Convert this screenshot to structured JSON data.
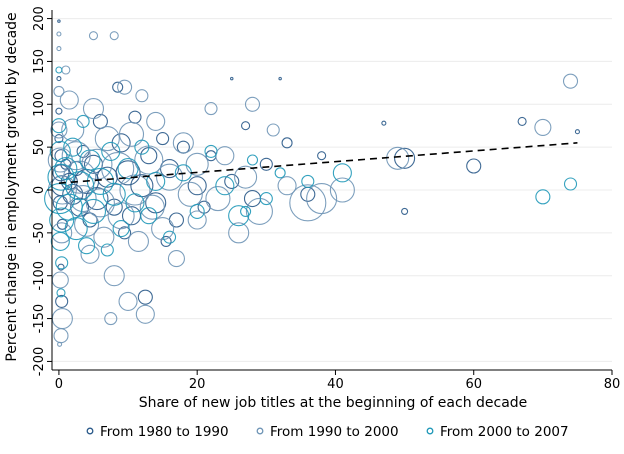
{
  "chart_data": {
    "type": "scatter",
    "title": "",
    "xlabel": "Share of new job titles at the beginning of each decade",
    "ylabel": "Percent change in employment growth by decade",
    "xlim": [
      -1,
      80
    ],
    "ylim": [
      -210,
      210
    ],
    "xticks": [
      0,
      20,
      40,
      60,
      80
    ],
    "yticks": [
      -200,
      -150,
      -100,
      -50,
      0,
      50,
      100,
      150,
      200
    ],
    "grid": true,
    "legend_position": "bottom",
    "colors": {
      "1980s": "#2a5a8a",
      "1990s": "#6f95b6",
      "2000s": "#1f98b8",
      "fit_line": "#000000"
    },
    "series": [
      {
        "name": "From 1980 to 1990",
        "points": [
          [
            0,
            197,
            1
          ],
          [
            0,
            130,
            2
          ],
          [
            0,
            92,
            3
          ],
          [
            0,
            60,
            4
          ],
          [
            0.3,
            40,
            6
          ],
          [
            0.3,
            20,
            8
          ],
          [
            0.4,
            5,
            10
          ],
          [
            0.2,
            -15,
            7
          ],
          [
            0.5,
            -40,
            5
          ],
          [
            0.3,
            -90,
            3
          ],
          [
            0.4,
            -130,
            6
          ],
          [
            1,
            30,
            5
          ],
          [
            1.5,
            10,
            8
          ],
          [
            2,
            -5,
            10
          ],
          [
            2.5,
            25,
            7
          ],
          [
            3,
            -20,
            9
          ],
          [
            3.5,
            45,
            6
          ],
          [
            4,
            10,
            12
          ],
          [
            4.5,
            -35,
            7
          ],
          [
            5,
            30,
            9
          ],
          [
            5.5,
            -10,
            11
          ],
          [
            6,
            80,
            7
          ],
          [
            7,
            15,
            10
          ],
          [
            8,
            -20,
            8
          ],
          [
            8.5,
            120,
            5
          ],
          [
            9,
            55,
            9
          ],
          [
            9.5,
            -50,
            6
          ],
          [
            10,
            20,
            12
          ],
          [
            10.5,
            -30,
            9
          ],
          [
            11,
            85,
            6
          ],
          [
            12,
            5,
            11
          ],
          [
            12.5,
            -125,
            7
          ],
          [
            13,
            40,
            8
          ],
          [
            14,
            -15,
            10
          ],
          [
            15,
            60,
            6
          ],
          [
            15.5,
            -60,
            5
          ],
          [
            16,
            25,
            9
          ],
          [
            17,
            -35,
            7
          ],
          [
            18,
            50,
            6
          ],
          [
            20,
            5,
            9
          ],
          [
            21,
            -20,
            6
          ],
          [
            22,
            40,
            5
          ],
          [
            25,
            130,
            1
          ],
          [
            25,
            10,
            7
          ],
          [
            27,
            75,
            4
          ],
          [
            28,
            -10,
            8
          ],
          [
            30,
            30,
            6
          ],
          [
            32,
            130,
            1
          ],
          [
            33,
            55,
            5
          ],
          [
            36,
            -5,
            7
          ],
          [
            38,
            40,
            4
          ],
          [
            47,
            78,
            2
          ],
          [
            50,
            -25,
            3
          ],
          [
            50,
            37,
            10
          ],
          [
            60,
            28,
            7
          ],
          [
            67,
            80,
            4
          ],
          [
            75,
            68,
            2
          ]
        ]
      },
      {
        "name": "From 1990 to 2000",
        "points": [
          [
            0,
            182,
            2
          ],
          [
            0,
            165,
            2
          ],
          [
            0,
            115,
            5
          ],
          [
            0,
            70,
            8
          ],
          [
            0.2,
            35,
            12
          ],
          [
            0.5,
            0,
            14
          ],
          [
            0.4,
            -50,
            10
          ],
          [
            0.2,
            -105,
            8
          ],
          [
            0.5,
            -150,
            10
          ],
          [
            0.3,
            -170,
            7
          ],
          [
            0.1,
            -180,
            2
          ],
          [
            1,
            140,
            4
          ],
          [
            1.5,
            105,
            9
          ],
          [
            2,
            70,
            11
          ],
          [
            2.5,
            40,
            14
          ],
          [
            3,
            15,
            16
          ],
          [
            3.5,
            -10,
            13
          ],
          [
            4,
            -40,
            12
          ],
          [
            4.5,
            -75,
            9
          ],
          [
            5,
            95,
            10
          ],
          [
            5,
            180,
            4
          ],
          [
            5.5,
            30,
            15
          ],
          [
            6,
            -15,
            14
          ],
          [
            6.5,
            -55,
            10
          ],
          [
            7,
            60,
            12
          ],
          [
            7.5,
            -150,
            6
          ],
          [
            8,
            180,
            4
          ],
          [
            8,
            -100,
            10
          ],
          [
            8.5,
            25,
            16
          ],
          [
            9,
            -30,
            13
          ],
          [
            9.5,
            120,
            7
          ],
          [
            10,
            -130,
            9
          ],
          [
            10.5,
            65,
            12
          ],
          [
            11,
            0,
            15
          ],
          [
            11.5,
            -60,
            10
          ],
          [
            12,
            110,
            6
          ],
          [
            12.5,
            -145,
            9
          ],
          [
            13,
            35,
            14
          ],
          [
            13.5,
            -20,
            12
          ],
          [
            14,
            80,
            9
          ],
          [
            15,
            -45,
            11
          ],
          [
            16,
            15,
            13
          ],
          [
            17,
            -80,
            8
          ],
          [
            18,
            55,
            10
          ],
          [
            19,
            -5,
            12
          ],
          [
            20,
            30,
            11
          ],
          [
            20,
            -35,
            9
          ],
          [
            22,
            95,
            6
          ],
          [
            23,
            -10,
            12
          ],
          [
            24,
            40,
            9
          ],
          [
            26,
            -50,
            10
          ],
          [
            27,
            15,
            11
          ],
          [
            28,
            100,
            7
          ],
          [
            29,
            -25,
            13
          ],
          [
            31,
            70,
            6
          ],
          [
            33,
            5,
            9
          ],
          [
            36,
            -15,
            18
          ],
          [
            38,
            -10,
            15
          ],
          [
            41,
            0,
            12
          ],
          [
            49,
            37,
            11
          ],
          [
            70,
            73,
            8
          ],
          [
            74,
            127,
            7
          ]
        ]
      },
      {
        "name": "From 2000 to 2007",
        "points": [
          [
            0,
            140,
            3
          ],
          [
            0,
            75,
            7
          ],
          [
            0.2,
            45,
            10
          ],
          [
            0.3,
            15,
            13
          ],
          [
            0.1,
            -10,
            15
          ],
          [
            0.4,
            -35,
            12
          ],
          [
            0.2,
            -60,
            9
          ],
          [
            0.4,
            -85,
            6
          ],
          [
            0.3,
            -120,
            4
          ],
          [
            1,
            25,
            11
          ],
          [
            1.5,
            -20,
            13
          ],
          [
            2,
            50,
            9
          ],
          [
            2.5,
            -45,
            11
          ],
          [
            3,
            5,
            14
          ],
          [
            3.5,
            80,
            6
          ],
          [
            4,
            -65,
            8
          ],
          [
            4.5,
            35,
            10
          ],
          [
            5,
            -25,
            12
          ],
          [
            6,
            10,
            13
          ],
          [
            7,
            -70,
            6
          ],
          [
            7.5,
            45,
            9
          ],
          [
            8,
            -5,
            11
          ],
          [
            9,
            -45,
            8
          ],
          [
            10,
            25,
            10
          ],
          [
            11,
            -15,
            9
          ],
          [
            12,
            50,
            7
          ],
          [
            13,
            -30,
            8
          ],
          [
            14,
            10,
            9
          ],
          [
            16,
            -55,
            6
          ],
          [
            18,
            20,
            8
          ],
          [
            20,
            -25,
            7
          ],
          [
            22,
            45,
            6
          ],
          [
            24,
            5,
            9
          ],
          [
            26,
            -30,
            10
          ],
          [
            27,
            -25,
            5
          ],
          [
            28,
            35,
            5
          ],
          [
            30,
            -10,
            6
          ],
          [
            32,
            20,
            5
          ],
          [
            36,
            10,
            6
          ],
          [
            41,
            20,
            9
          ],
          [
            70,
            -8,
            7
          ],
          [
            74,
            7,
            6
          ]
        ]
      }
    ],
    "fit_line": {
      "x": [
        0,
        75
      ],
      "y": [
        8,
        55
      ],
      "style": "dashed"
    }
  }
}
